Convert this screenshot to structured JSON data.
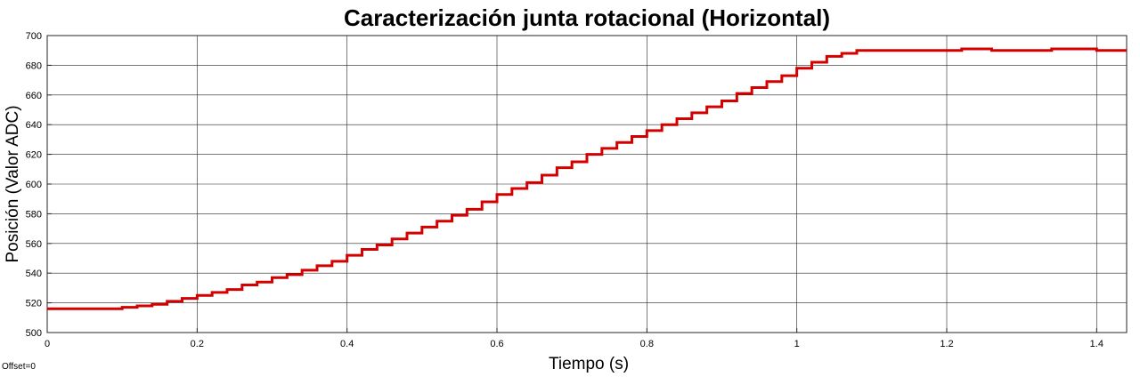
{
  "chart_data": {
    "type": "line",
    "title": "Caracterización junta rotacional (Horizontal)",
    "xlabel": "Tiempo (s)",
    "ylabel": "Posición (Valor ADC)",
    "xlim": [
      0,
      1.44
    ],
    "ylim": [
      500,
      700
    ],
    "xticks": [
      0,
      0.2,
      0.4,
      0.6,
      0.8,
      1,
      1.2,
      1.4
    ],
    "xtick_labels": [
      "0",
      "0.2",
      "0.4",
      "0.6",
      "0.8",
      "1",
      "1.2",
      "1.4"
    ],
    "yticks": [
      500,
      520,
      540,
      560,
      580,
      600,
      620,
      640,
      660,
      680,
      700
    ],
    "ytick_labels": [
      "500",
      "520",
      "540",
      "560",
      "580",
      "600",
      "620",
      "640",
      "660",
      "680",
      "700"
    ],
    "grid": true,
    "line_style": "step",
    "series": [
      {
        "color": "#d40000",
        "x": [
          0,
          0.1,
          0.12,
          0.14,
          0.16,
          0.18,
          0.2,
          0.22,
          0.24,
          0.26,
          0.28,
          0.3,
          0.32,
          0.34,
          0.36,
          0.38,
          0.4,
          0.42,
          0.44,
          0.46,
          0.48,
          0.5,
          0.52,
          0.54,
          0.56,
          0.58,
          0.6,
          0.62,
          0.64,
          0.66,
          0.68,
          0.7,
          0.72,
          0.74,
          0.76,
          0.78,
          0.8,
          0.82,
          0.84,
          0.86,
          0.88,
          0.9,
          0.92,
          0.94,
          0.96,
          0.98,
          1.0,
          1.02,
          1.04,
          1.06,
          1.08,
          1.2,
          1.22,
          1.26,
          1.3,
          1.34,
          1.4,
          1.44
        ],
        "y": [
          516,
          517,
          518,
          519,
          521,
          523,
          525,
          527,
          529,
          532,
          534,
          537,
          539,
          542,
          545,
          548,
          552,
          556,
          559,
          563,
          567,
          571,
          575,
          579,
          583,
          588,
          593,
          597,
          601,
          606,
          611,
          615,
          620,
          624,
          628,
          632,
          636,
          640,
          644,
          648,
          652,
          656,
          661,
          665,
          669,
          673,
          678,
          682,
          686,
          688,
          690,
          690,
          691,
          690,
          690,
          691,
          690,
          690
        ]
      }
    ]
  },
  "footer": {
    "offset_label": "Offset=0"
  }
}
